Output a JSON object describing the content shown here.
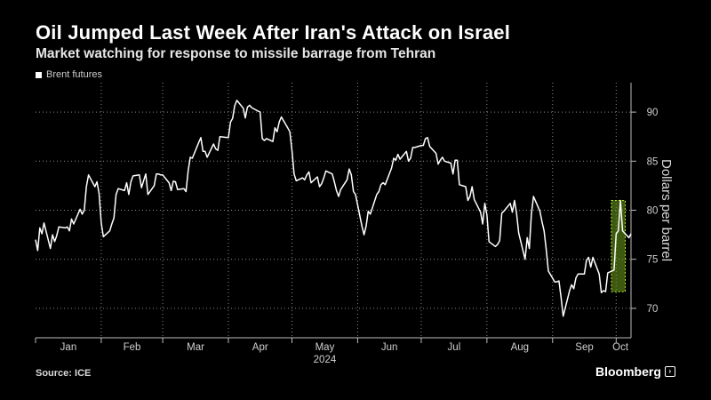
{
  "header": {
    "title": "Oil Jumped Last Week After Iran's Attack on Israel",
    "subtitle": "Market watching for response to missile barrage from Tehran"
  },
  "footer": {
    "source": "Source: ICE",
    "brand": "Bloomberg"
  },
  "colors": {
    "background": "#000000",
    "line": "#ffffff",
    "highlight_fill": "#6fa11c",
    "highlight_border": "#b6f22a"
  },
  "chart_data": {
    "type": "line",
    "title": "Oil Jumped Last Week After Iran's Attack on Israel",
    "subtitle": "Market watching for response to missile barrage from Tehran",
    "xlabel": "2024",
    "ylabel": "Dollars per barrel",
    "legend": [
      "Brent futures"
    ],
    "legend_position": "top-left",
    "y_axis_side": "right",
    "grid": "dotted",
    "xlim": [
      "2024-01-01",
      "2024-10-08"
    ],
    "ylim": [
      67,
      93
    ],
    "x_ticks": [
      "Jan",
      "Feb",
      "Mar",
      "Apr",
      "May",
      "Jun",
      "Jul",
      "Aug",
      "Sep",
      "Oct"
    ],
    "y_ticks": [
      70,
      75,
      80,
      85,
      90
    ],
    "highlight": {
      "x_start": "2024-09-30",
      "x_end": "2024-10-04",
      "y_min": 71.7,
      "y_max": 81
    },
    "series": [
      {
        "name": "Brent futures",
        "x": [
          "2024-01-01",
          "2024-01-02",
          "2024-01-03",
          "2024-01-04",
          "2024-01-05",
          "2024-01-08",
          "2024-01-09",
          "2024-01-10",
          "2024-01-11",
          "2024-01-12",
          "2024-01-15",
          "2024-01-16",
          "2024-01-17",
          "2024-01-18",
          "2024-01-19",
          "2024-01-22",
          "2024-01-23",
          "2024-01-24",
          "2024-01-25",
          "2024-01-26",
          "2024-01-29",
          "2024-01-30",
          "2024-01-31",
          "2024-02-01",
          "2024-02-02",
          "2024-02-05",
          "2024-02-06",
          "2024-02-07",
          "2024-02-08",
          "2024-02-09",
          "2024-02-12",
          "2024-02-13",
          "2024-02-14",
          "2024-02-15",
          "2024-02-16",
          "2024-02-19",
          "2024-02-20",
          "2024-02-21",
          "2024-02-22",
          "2024-02-23",
          "2024-02-26",
          "2024-02-27",
          "2024-02-28",
          "2024-02-29",
          "2024-03-01",
          "2024-03-04",
          "2024-03-05",
          "2024-03-06",
          "2024-03-07",
          "2024-03-08",
          "2024-03-11",
          "2024-03-12",
          "2024-03-13",
          "2024-03-14",
          "2024-03-15",
          "2024-03-18",
          "2024-03-19",
          "2024-03-20",
          "2024-03-21",
          "2024-03-22",
          "2024-03-25",
          "2024-03-26",
          "2024-03-27",
          "2024-03-28",
          "2024-04-01",
          "2024-04-02",
          "2024-04-03",
          "2024-04-04",
          "2024-04-05",
          "2024-04-08",
          "2024-04-09",
          "2024-04-10",
          "2024-04-11",
          "2024-04-12",
          "2024-04-15",
          "2024-04-16",
          "2024-04-17",
          "2024-04-18",
          "2024-04-19",
          "2024-04-22",
          "2024-04-23",
          "2024-04-24",
          "2024-04-25",
          "2024-04-26",
          "2024-04-29",
          "2024-04-30",
          "2024-05-01",
          "2024-05-02",
          "2024-05-03",
          "2024-05-06",
          "2024-05-07",
          "2024-05-08",
          "2024-05-09",
          "2024-05-10",
          "2024-05-13",
          "2024-05-14",
          "2024-05-15",
          "2024-05-16",
          "2024-05-17",
          "2024-05-20",
          "2024-05-21",
          "2024-05-22",
          "2024-05-23",
          "2024-05-24",
          "2024-05-27",
          "2024-05-28",
          "2024-05-29",
          "2024-05-30",
          "2024-05-31",
          "2024-06-03",
          "2024-06-04",
          "2024-06-05",
          "2024-06-06",
          "2024-06-07",
          "2024-06-10",
          "2024-06-11",
          "2024-06-12",
          "2024-06-13",
          "2024-06-14",
          "2024-06-17",
          "2024-06-18",
          "2024-06-19",
          "2024-06-20",
          "2024-06-21",
          "2024-06-24",
          "2024-06-25",
          "2024-06-26",
          "2024-06-27",
          "2024-06-28",
          "2024-07-01",
          "2024-07-02",
          "2024-07-03",
          "2024-07-04",
          "2024-07-05",
          "2024-07-08",
          "2024-07-09",
          "2024-07-10",
          "2024-07-11",
          "2024-07-12",
          "2024-07-15",
          "2024-07-16",
          "2024-07-17",
          "2024-07-18",
          "2024-07-19",
          "2024-07-22",
          "2024-07-23",
          "2024-07-24",
          "2024-07-25",
          "2024-07-26",
          "2024-07-29",
          "2024-07-30",
          "2024-07-31",
          "2024-08-01",
          "2024-08-02",
          "2024-08-05",
          "2024-08-06",
          "2024-08-07",
          "2024-08-08",
          "2024-08-09",
          "2024-08-12",
          "2024-08-13",
          "2024-08-14",
          "2024-08-15",
          "2024-08-16",
          "2024-08-19",
          "2024-08-20",
          "2024-08-21",
          "2024-08-22",
          "2024-08-23",
          "2024-08-26",
          "2024-08-27",
          "2024-08-28",
          "2024-08-29",
          "2024-08-30",
          "2024-09-02",
          "2024-09-03",
          "2024-09-04",
          "2024-09-05",
          "2024-09-06",
          "2024-09-09",
          "2024-09-10",
          "2024-09-11",
          "2024-09-12",
          "2024-09-13",
          "2024-09-16",
          "2024-09-17",
          "2024-09-18",
          "2024-09-19",
          "2024-09-20",
          "2024-09-23",
          "2024-09-24",
          "2024-09-25",
          "2024-09-26",
          "2024-09-27",
          "2024-09-30",
          "2024-10-01",
          "2024-10-02",
          "2024-10-03",
          "2024-10-04",
          "2024-10-07",
          "2024-10-08"
        ],
        "values": [
          77.0,
          75.9,
          78.2,
          77.6,
          78.7,
          76.1,
          77.5,
          76.8,
          77.4,
          78.3,
          78.2,
          78.3,
          77.9,
          79.1,
          78.6,
          80.1,
          79.6,
          80.0,
          82.4,
          83.6,
          82.4,
          82.9,
          81.7,
          78.7,
          77.3,
          77.9,
          78.6,
          79.2,
          81.6,
          82.2,
          82.0,
          82.8,
          81.6,
          82.9,
          83.5,
          83.6,
          82.3,
          83.0,
          83.7,
          81.6,
          82.5,
          83.7,
          83.7,
          83.6,
          83.6,
          82.8,
          82.0,
          82.96,
          82.9,
          82.1,
          82.2,
          81.9,
          84.0,
          85.4,
          85.3,
          86.9,
          87.4,
          86.0,
          86.0,
          85.4,
          86.75,
          86.25,
          86.1,
          87.5,
          87.4,
          89.0,
          89.35,
          90.65,
          91.2,
          90.4,
          89.4,
          90.5,
          90.7,
          90.45,
          90.1,
          90.0,
          87.3,
          87.1,
          87.3,
          87.0,
          88.4,
          88.0,
          89.0,
          89.5,
          88.4,
          88.0,
          86.1,
          83.7,
          83.0,
          83.3,
          83.1,
          83.6,
          83.9,
          82.8,
          83.4,
          82.4,
          82.7,
          83.3,
          84.0,
          83.7,
          82.9,
          82.0,
          81.4,
          82.1,
          83.1,
          84.2,
          83.6,
          81.9,
          81.6,
          78.4,
          77.5,
          78.4,
          79.9,
          79.6,
          81.6,
          81.9,
          82.6,
          82.8,
          82.6,
          84.3,
          85.3,
          85.1,
          85.7,
          85.2,
          86.0,
          85.0,
          85.3,
          86.4,
          86.4,
          86.6,
          86.6,
          87.3,
          87.4,
          86.5,
          85.8,
          84.7,
          85.1,
          85.4,
          85.0,
          84.8,
          83.7,
          85.1,
          85.1,
          82.6,
          82.4,
          81.0,
          81.4,
          82.4,
          81.1,
          79.8,
          78.6,
          80.7,
          79.5,
          76.8,
          76.3,
          76.5,
          76.9,
          79.7,
          79.9,
          80.7,
          79.8,
          81.0,
          79.7,
          77.7,
          75.0,
          77.2,
          76.1,
          79.6,
          81.4,
          79.9,
          78.8,
          77.9,
          76.0,
          73.8,
          72.7,
          72.7,
          72.8,
          71.1,
          69.2,
          71.8,
          72.4,
          72.0,
          73.1,
          73.5,
          73.5,
          74.9,
          75.2,
          74.2,
          75.2,
          73.5,
          71.6,
          71.8,
          71.7,
          73.6,
          73.9,
          77.6,
          77.9,
          81.0,
          77.9,
          77.2,
          77.6
        ]
      }
    ]
  }
}
